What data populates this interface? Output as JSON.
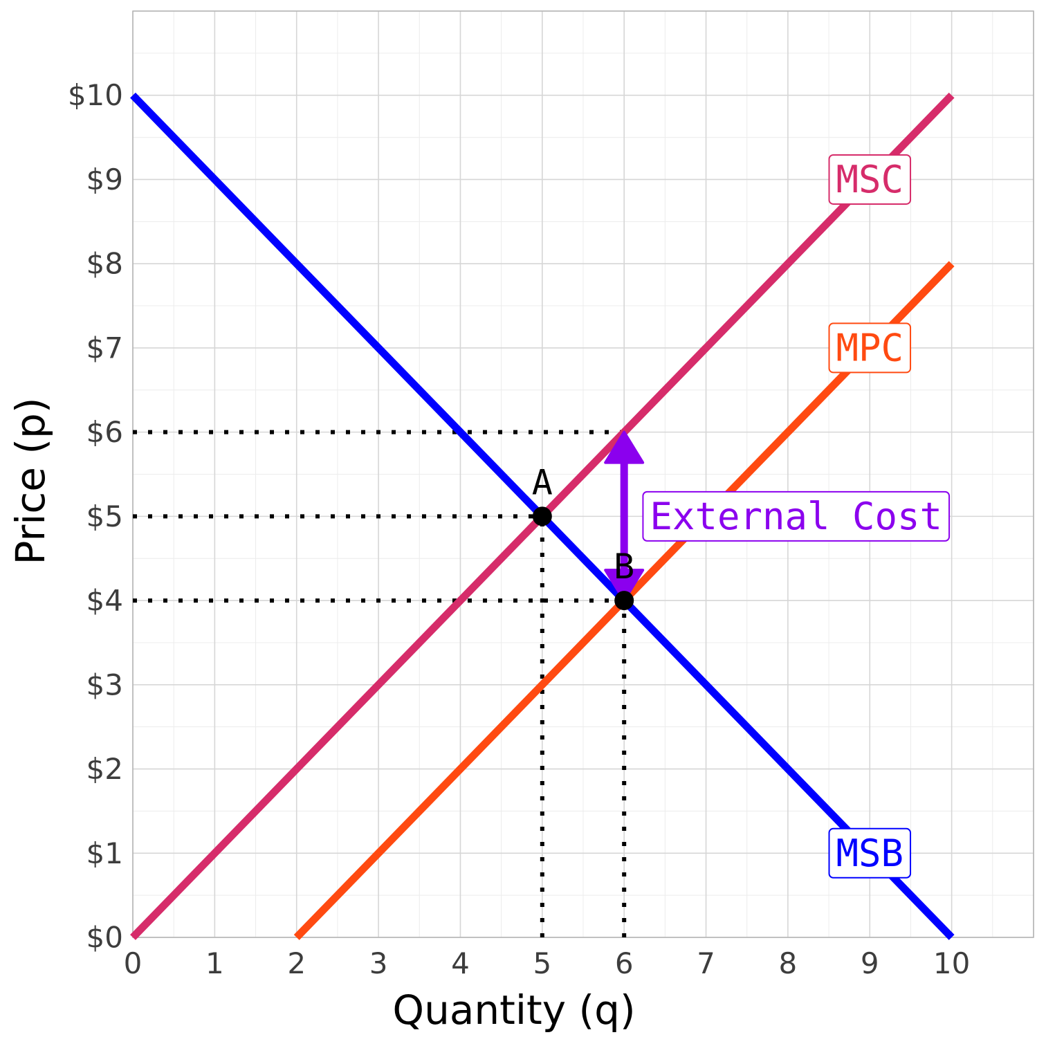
{
  "chart_data": {
    "type": "line",
    "title": "",
    "xlabel": "Quantity (q)",
    "ylabel": "Price (p)",
    "xlim": [
      0,
      11
    ],
    "ylim": [
      0,
      11
    ],
    "x_ticks": [
      "0",
      "1",
      "2",
      "3",
      "4",
      "5",
      "6",
      "7",
      "8",
      "9",
      "10"
    ],
    "y_ticks": [
      "$0",
      "$1",
      "$2",
      "$3",
      "$4",
      "$5",
      "$6",
      "$7",
      "$8",
      "$9",
      "$10"
    ],
    "grid": true,
    "series": [
      {
        "name": "MSB",
        "color": "#0000ff",
        "points": [
          [
            0,
            10
          ],
          [
            10,
            0
          ]
        ]
      },
      {
        "name": "MSC",
        "color": "#d62c6a",
        "points": [
          [
            0,
            0
          ],
          [
            10,
            10
          ]
        ]
      },
      {
        "name": "MPC",
        "color": "#ff4a11",
        "points": [
          [
            2,
            0
          ],
          [
            10,
            8
          ]
        ]
      }
    ],
    "curve_labels": [
      {
        "text": "MSC",
        "color": "#d62c6a",
        "x": 9,
        "y": 9
      },
      {
        "text": "MPC",
        "color": "#ff4a11",
        "x": 9,
        "y": 7
      },
      {
        "text": "MSB",
        "color": "#0000ff",
        "x": 9,
        "y": 1
      }
    ],
    "points": [
      {
        "label": "A",
        "x": 5,
        "y": 5
      },
      {
        "label": "B",
        "x": 6,
        "y": 4
      }
    ],
    "reference_lines": [
      {
        "from": [
          0,
          6
        ],
        "to": [
          6,
          6
        ]
      },
      {
        "from": [
          0,
          5
        ],
        "to": [
          5,
          5
        ]
      },
      {
        "from": [
          0,
          4
        ],
        "to": [
          6,
          4
        ]
      },
      {
        "from": [
          5,
          0
        ],
        "to": [
          5,
          5
        ]
      },
      {
        "from": [
          6,
          0
        ],
        "to": [
          6,
          4
        ]
      }
    ],
    "annotation": {
      "text": "External Cost",
      "color": "#8b00ee",
      "arrow_x": 6,
      "arrow_from": 4,
      "arrow_to": 6,
      "label_x": 8.1,
      "label_y": 5
    }
  }
}
